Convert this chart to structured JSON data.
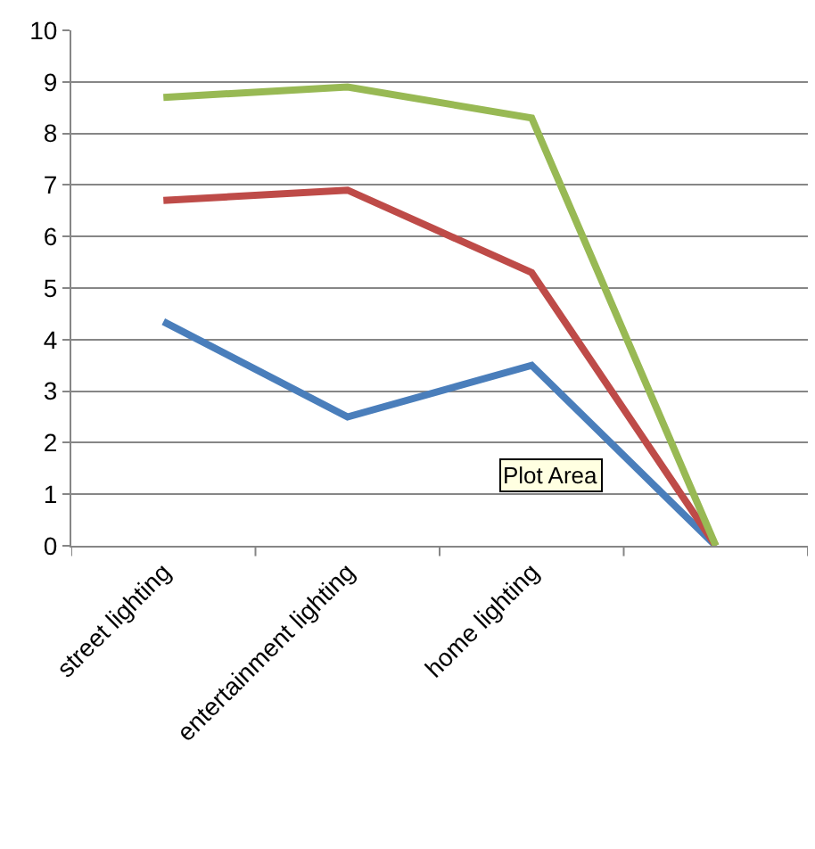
{
  "chart_data": {
    "type": "line",
    "categories": [
      "street lighting",
      "entertainment lighting",
      "home lighting",
      null
    ],
    "series": [
      {
        "color": "#4a7ebb",
        "values": [
          4.35,
          2.5,
          3.5,
          0
        ]
      },
      {
        "color": "#be4b48",
        "values": [
          6.7,
          6.9,
          5.3,
          0
        ]
      },
      {
        "color": "#98b954",
        "values": [
          8.7,
          8.9,
          8.3,
          0
        ]
      }
    ],
    "ylim": [
      0,
      10
    ],
    "yticks": [
      0,
      1,
      2,
      3,
      4,
      5,
      6,
      7,
      8,
      9,
      10
    ],
    "grid": "y",
    "marker": "none",
    "line_style": "solid",
    "annotations": [
      "Plot Area"
    ]
  }
}
